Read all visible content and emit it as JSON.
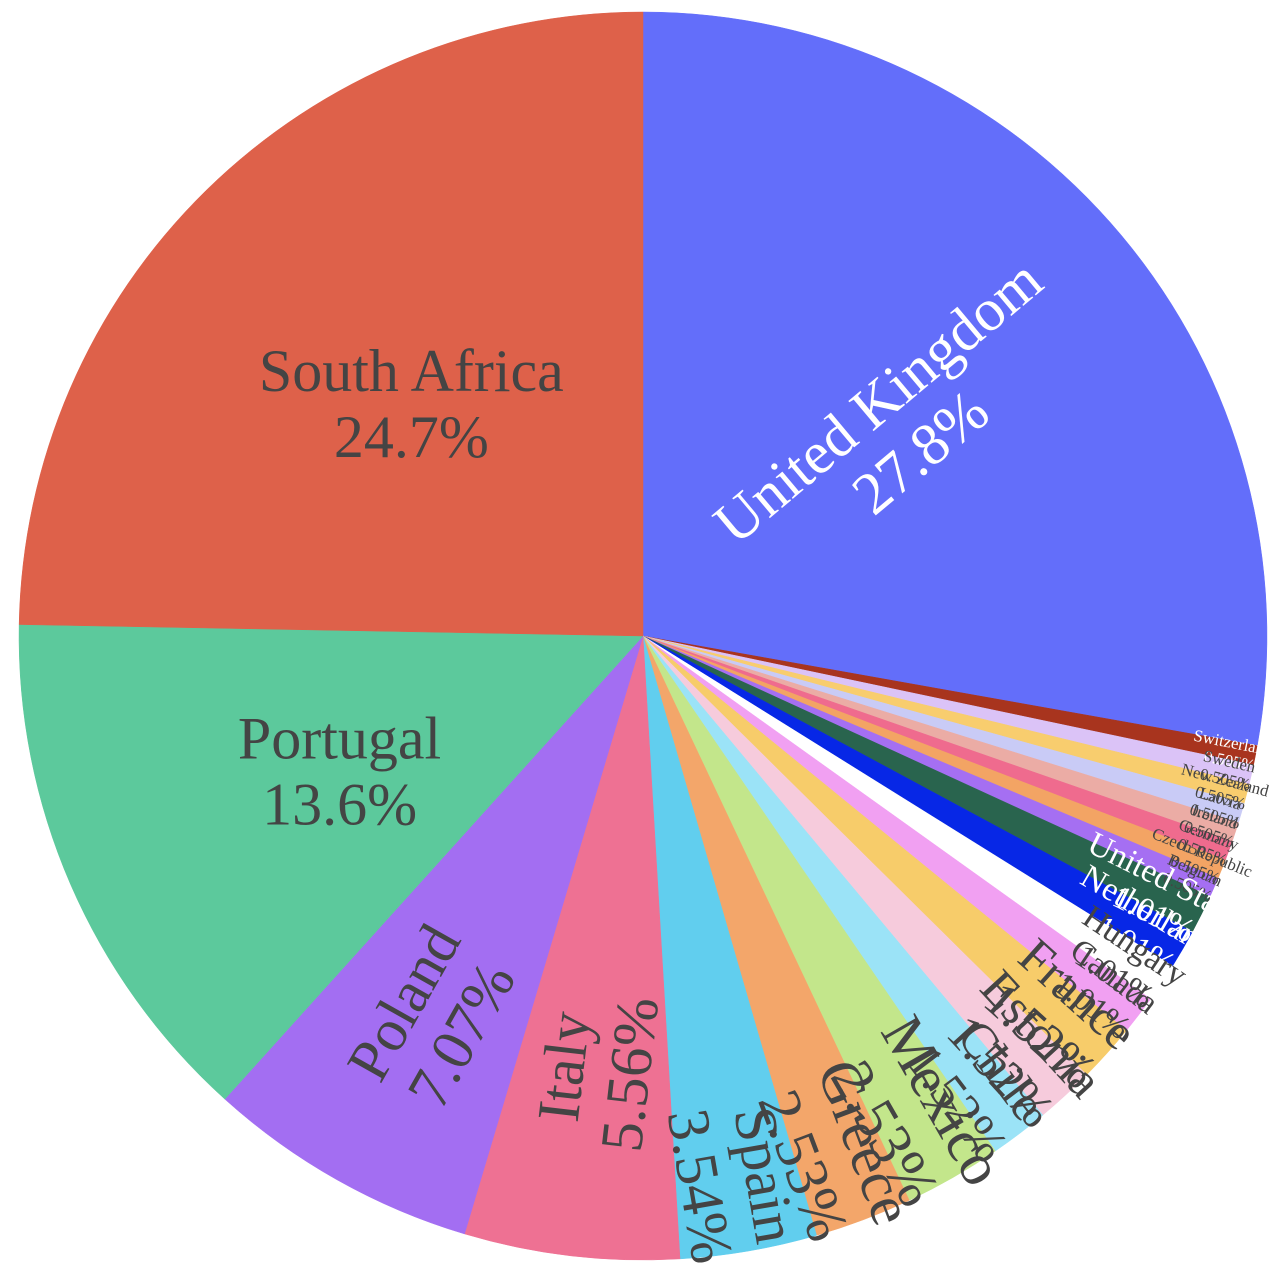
{
  "chart_data": {
    "type": "pie",
    "title": "",
    "start_angle_deg": 90,
    "direction": "clockwise",
    "slices": [
      {
        "label": "United Kingdom",
        "value": 27.8,
        "percent": "27.8%",
        "color": "#636EFA",
        "text_color": "#ffffff"
      },
      {
        "label": "Switzerland",
        "value": 0.505,
        "percent": "0.505%",
        "color": "#A8341E",
        "text_color": "#ffffff"
      },
      {
        "label": "Sweden",
        "value": 0.505,
        "percent": "0.505%",
        "color": "#DBC3F7",
        "text_color": "#444444"
      },
      {
        "label": "New Zealand",
        "value": 0.505,
        "percent": "0.505%",
        "color": "#F8CD6E",
        "text_color": "#444444"
      },
      {
        "label": "Latvia",
        "value": 0.505,
        "percent": "0.505%",
        "color": "#C9CBF6",
        "text_color": "#444444"
      },
      {
        "label": "Ireland",
        "value": 0.505,
        "percent": "0.505%",
        "color": "#EBACA5",
        "text_color": "#444444"
      },
      {
        "label": "Germany",
        "value": 0.505,
        "percent": "0.505%",
        "color": "#EF6B8E",
        "text_color": "#444444"
      },
      {
        "label": "Czech Republic",
        "value": 0.505,
        "percent": "0.505%",
        "color": "#F3A464",
        "text_color": "#444444"
      },
      {
        "label": "Belgium",
        "value": 0.505,
        "percent": "0.505%",
        "color": "#A56FF2",
        "text_color": "#444444"
      },
      {
        "label": "United States",
        "value": 1.01,
        "percent": "1.01%",
        "color": "#29644E",
        "text_color": "#ffffff"
      },
      {
        "label": "Netherlands",
        "value": 1.01,
        "percent": "1.01%",
        "color": "#0727E6",
        "text_color": "#ffffff"
      },
      {
        "label": "Hungary",
        "value": 1.01,
        "percent": "1.01%",
        "color": "#FFFFFF",
        "text_color": "#444444"
      },
      {
        "label": "Canada",
        "value": 1.01,
        "percent": "1.01%",
        "color": "#F1A0F2",
        "text_color": "#444444"
      },
      {
        "label": "France",
        "value": 1.52,
        "percent": "1.52%",
        "color": "#F7CC6A",
        "text_color": "#444444"
      },
      {
        "label": "Estonia",
        "value": 1.52,
        "percent": "1.52%",
        "color": "#F6CBDC",
        "text_color": "#444444"
      },
      {
        "label": "Chile",
        "value": 1.52,
        "percent": "1.52%",
        "color": "#9BE3F7",
        "text_color": "#444444"
      },
      {
        "label": "Mexico",
        "value": 2.53,
        "percent": "2.53%",
        "color": "#C3E68B",
        "text_color": "#444444"
      },
      {
        "label": "Greece",
        "value": 2.53,
        "percent": "2.53%",
        "color": "#F3A66A",
        "text_color": "#444444"
      },
      {
        "label": "Spain",
        "value": 3.54,
        "percent": "3.54%",
        "color": "#61CEEE",
        "text_color": "#444444"
      },
      {
        "label": "Italy",
        "value": 5.56,
        "percent": "5.56%",
        "color": "#EE7193",
        "text_color": "#444444"
      },
      {
        "label": "Poland",
        "value": 7.07,
        "percent": "7.07%",
        "color": "#A36EF2",
        "text_color": "#444444"
      },
      {
        "label": "Portugal",
        "value": 13.6,
        "percent": "13.6%",
        "color": "#5CC99C",
        "text_color": "#444444"
      },
      {
        "label": "South Africa",
        "value": 24.7,
        "percent": "24.7%",
        "color": "#DE614A",
        "text_color": "#444444"
      }
    ]
  }
}
